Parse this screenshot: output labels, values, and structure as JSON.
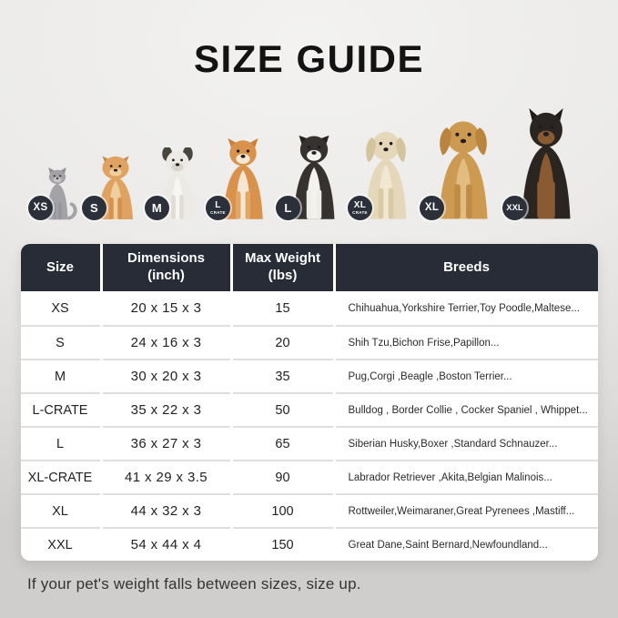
{
  "title": "SIZE GUIDE",
  "note": "If your pet's weight falls between sizes, size up.",
  "colors": {
    "header_bg": "#272c37",
    "badge_bg": "#2b303a",
    "card_bg": "#ffffff",
    "row_divider": "#dedede",
    "page_top": "#f3f2f0",
    "page_bottom": "#cfcecc"
  },
  "animals": [
    {
      "id": "cat",
      "badge": "XS",
      "badge_sub": "",
      "kind": "cat",
      "palette": {
        "body": "#a2a2a7",
        "muzzle": "#c6c6cb",
        "legs": "#96969c",
        "ear": "#8e8e94"
      }
    },
    {
      "id": "pomeranian",
      "badge": "S",
      "badge_sub": "",
      "kind": "fluffy",
      "palette": {
        "body": "#dfa261",
        "chest": "#f0cf9e",
        "muzzle": "#f0cf9e",
        "legs": "#d3924f",
        "ear": "#c9884a"
      }
    },
    {
      "id": "french-bulldog",
      "badge": "M",
      "badge_sub": "",
      "kind": "bat",
      "palette": {
        "body": "#eceae5",
        "chest": "#f7f5f1",
        "muzzle": "#d9d5cd",
        "legs": "#dfdcd5",
        "ear": "#49463f"
      }
    },
    {
      "id": "shiba-inu",
      "badge": "L",
      "badge_sub": "CRATE",
      "kind": "point",
      "palette": {
        "body": "#d9924c",
        "chest": "#f6e7d3",
        "muzzle": "#f6e7d3",
        "legs": "#e2a767",
        "ear": "#c9813d"
      }
    },
    {
      "id": "border-collie",
      "badge": "L",
      "badge_sub": "",
      "kind": "semi",
      "palette": {
        "body": "#35322f",
        "chest": "#f4f2ee",
        "muzzle": "#f4f2ee",
        "legs": "#efede8",
        "ear": "#26231f"
      }
    },
    {
      "id": "labrador",
      "badge": "XL",
      "badge_sub": "CRATE",
      "kind": "floppy",
      "palette": {
        "body": "#e5d8ba",
        "chest": "#f0e8d2",
        "muzzle": "#e5d8ba",
        "legs": "#d9caa6",
        "ear": "#d4c49d"
      }
    },
    {
      "id": "golden-retriever",
      "badge": "XL",
      "badge_sub": "",
      "kind": "floppy",
      "palette": {
        "body": "#cd9a52",
        "chest": "#e1bd7f",
        "muzzle": "#cd9a52",
        "legs": "#c08c45",
        "ear": "#b8843e"
      }
    },
    {
      "id": "doberman",
      "badge": "XXL",
      "badge_sub": "",
      "kind": "pointTall",
      "palette": {
        "body": "#2b2522",
        "chest": "#8a5a33",
        "muzzle": "#8a5a33",
        "legs": "#8a5a33",
        "ear": "#211c19"
      }
    }
  ],
  "table": {
    "headers": [
      {
        "label": "Size",
        "sub": ""
      },
      {
        "label": "Dimensions",
        "sub": "(inch)"
      },
      {
        "label": "Max Weight",
        "sub": "(lbs)"
      },
      {
        "label": "Breeds",
        "sub": ""
      }
    ],
    "rows": [
      {
        "size": "XS",
        "dimensions": "20 x 15 x 3",
        "max_weight": "15",
        "breeds": "Chihuahua,Yorkshire Terrier,Toy Poodle,Maltese..."
      },
      {
        "size": "S",
        "dimensions": "24 x 16 x 3",
        "max_weight": "20",
        "breeds": "Shih Tzu,Bichon Frise,Papillon..."
      },
      {
        "size": "M",
        "dimensions": "30 x 20 x 3",
        "max_weight": "35",
        "breeds": "Pug,Corgi ,Beagle ,Boston Terrier..."
      },
      {
        "size": "L-CRATE",
        "dimensions": "35 x 22 x 3",
        "max_weight": "50",
        "breeds": "Bulldog , Border Collie , Cocker Spaniel , Whippet..."
      },
      {
        "size": "L",
        "dimensions": "36 x 27 x 3",
        "max_weight": "65",
        "breeds": "Siberian Husky,Boxer ,Standard Schnauzer..."
      },
      {
        "size": "XL-CRATE",
        "dimensions": "41 x 29 x 3.5",
        "max_weight": "90",
        "breeds": "Labrador Retriever ,Akita,Belgian Malinois..."
      },
      {
        "size": "XL",
        "dimensions": "44 x 32 x 3",
        "max_weight": "100",
        "breeds": "Rottweiler,Weimaraner,Great Pyrenees ,Mastiff..."
      },
      {
        "size": "XXL",
        "dimensions": "54 x 44 x 4",
        "max_weight": "150",
        "breeds": "Great Dane,Saint Bernard,Newfoundland..."
      }
    ]
  }
}
